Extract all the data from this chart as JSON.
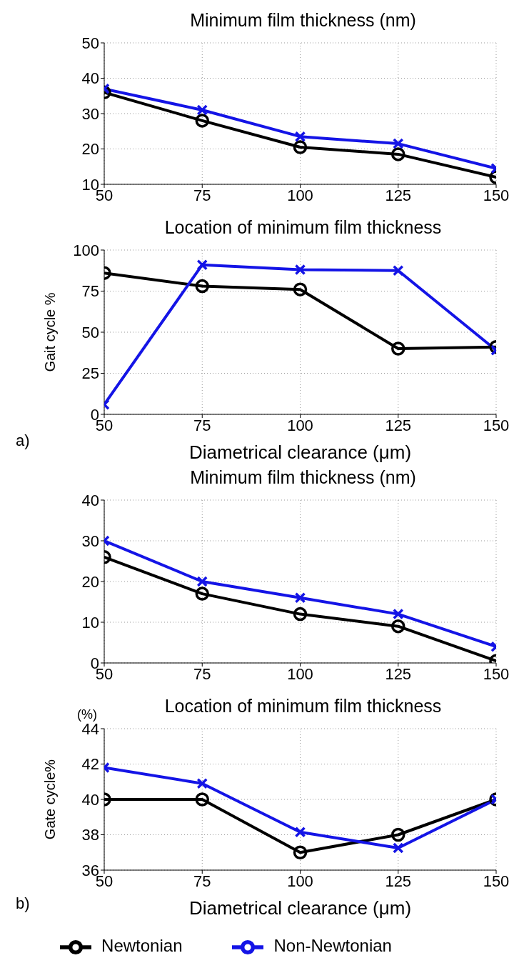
{
  "chart_data": [
    {
      "type": "line",
      "title": "Minimum film thickness (nm)",
      "x": [
        50,
        75,
        100,
        125,
        150
      ],
      "xlim": [
        50,
        150
      ],
      "xticks": [
        50,
        75,
        100,
        125,
        150
      ],
      "ylim": [
        10,
        50
      ],
      "yticks": [
        10,
        20,
        30,
        40,
        50
      ],
      "grid": true,
      "legend": false,
      "line_style": "solid",
      "series": [
        {
          "color": "#000000",
          "marker": "circle",
          "values": [
            36,
            28,
            20.5,
            18.5,
            12
          ]
        },
        {
          "color": "#1414e6",
          "marker": "cross",
          "values": [
            37,
            31,
            23.5,
            21.5,
            14.5
          ]
        }
      ]
    },
    {
      "type": "line",
      "title": "Location of minimum film thickness",
      "xlabel": "Diametrical clearance (μm)",
      "ylabel": "Gait cycle %",
      "annotations": [
        "a)"
      ],
      "x": [
        50,
        75,
        100,
        125,
        150
      ],
      "xlim": [
        50,
        150
      ],
      "xticks": [
        50,
        75,
        100,
        125,
        150
      ],
      "ylim": [
        0,
        100
      ],
      "yticks": [
        0,
        25,
        50,
        75,
        100
      ],
      "grid": true,
      "legend": false,
      "line_style": "solid",
      "series": [
        {
          "color": "#000000",
          "marker": "circle",
          "values": [
            86,
            78,
            76,
            40,
            41
          ]
        },
        {
          "color": "#1414e6",
          "marker": "cross",
          "values": [
            6,
            91,
            88,
            87.5,
            39
          ]
        }
      ]
    },
    {
      "type": "line",
      "title": "Minimum film thickness (nm)",
      "x": [
        50,
        75,
        100,
        125,
        150
      ],
      "xlim": [
        50,
        150
      ],
      "xticks": [
        50,
        75,
        100,
        125,
        150
      ],
      "ylim": [
        0,
        40
      ],
      "yticks": [
        0,
        10,
        20,
        30,
        40
      ],
      "grid": true,
      "legend": false,
      "line_style": "solid",
      "series": [
        {
          "color": "#000000",
          "marker": "circle",
          "values": [
            26,
            17,
            12,
            9,
            0.5
          ]
        },
        {
          "color": "#1414e6",
          "marker": "cross",
          "values": [
            30,
            20,
            16,
            12,
            4
          ]
        }
      ]
    },
    {
      "type": "line",
      "title": "Location of minimum film thickness",
      "xlabel": "Diametrical clearance (μm)",
      "ylabel": "Gate cycle%",
      "annotations": [
        "(%)",
        "b)"
      ],
      "x": [
        50,
        75,
        100,
        125,
        150
      ],
      "xlim": [
        50,
        150
      ],
      "xticks": [
        50,
        75,
        100,
        125,
        150
      ],
      "ylim": [
        36,
        44
      ],
      "yticks": [
        36,
        38,
        40,
        42,
        44
      ],
      "grid": true,
      "legend": "bottom",
      "line_style": "solid",
      "series": [
        {
          "name": "Newtonian",
          "color": "#000000",
          "marker": "circle",
          "values": [
            40,
            40,
            37,
            38,
            40
          ]
        },
        {
          "name": "Non-Newtonian",
          "color": "#1414e6",
          "marker": "cross",
          "values": [
            41.8,
            40.9,
            38.15,
            37.25,
            40
          ]
        }
      ]
    }
  ]
}
